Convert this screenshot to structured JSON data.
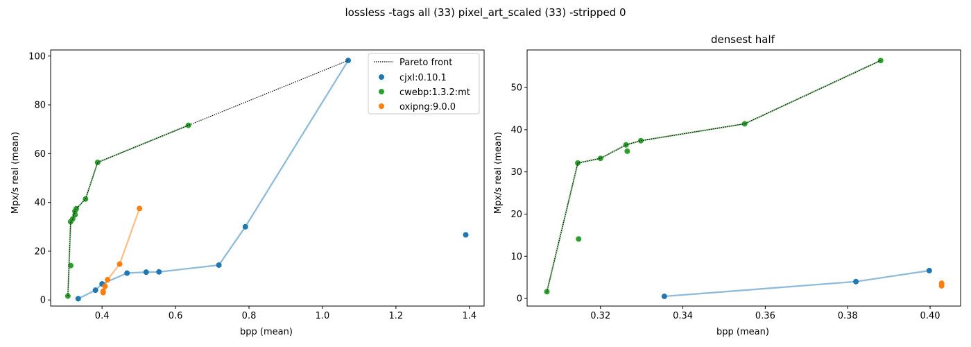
{
  "figure": {
    "suptitle": "lossless -tags all (33) pixel_art_scaled (33) -stripped 0"
  },
  "colors": {
    "cjxl": "#1f77b4",
    "cwebp": "#2ca02c",
    "oxipng": "#ff7f0e",
    "pareto": "#000000"
  },
  "chart_data": [
    {
      "type": "scatter",
      "title": "",
      "xlabel": "bpp (mean)",
      "ylabel": "Mpx/s real (mean)",
      "xlim": [
        0.26,
        1.44
      ],
      "ylim": [
        -2.5,
        102.5
      ],
      "xticks": [
        0.4,
        0.6,
        0.8,
        1.0,
        1.2,
        1.4
      ],
      "xtick_labels": [
        "0.4",
        "0.6",
        "0.8",
        "1.0",
        "1.2",
        "1.4"
      ],
      "yticks": [
        0,
        20,
        40,
        60,
        80,
        100
      ],
      "ytick_labels": [
        "0",
        "20",
        "40",
        "60",
        "80",
        "100"
      ],
      "grid": false,
      "legend_position": "top-right",
      "legend": [
        "Pareto front",
        "cjxl:0.10.1",
        "cwebp:1.3.2:mt",
        "oxipng:9.0.0"
      ],
      "series": [
        {
          "name": "cjxl:0.10.1",
          "color": "#1f77b4",
          "line": true,
          "points": [
            [
              0.335,
              0.5
            ],
            [
              0.382,
              4.0
            ],
            [
              0.4,
              6.6
            ],
            [
              0.468,
              11.0
            ],
            [
              0.52,
              11.4
            ],
            [
              0.555,
              11.5
            ],
            [
              0.718,
              14.3
            ],
            [
              0.79,
              30.0
            ],
            [
              1.07,
              98.2
            ]
          ],
          "extra_points": [
            [
              1.39,
              26.7
            ]
          ]
        },
        {
          "name": "cwebp:1.3.2:mt",
          "color": "#2ca02c",
          "line": true,
          "points": [
            [
              0.307,
              1.6
            ],
            [
              0.3145,
              32.1
            ],
            [
              0.32,
              33.2
            ],
            [
              0.3262,
              36.4
            ],
            [
              0.3298,
              37.4
            ],
            [
              0.355,
              41.4
            ],
            [
              0.388,
              56.4
            ],
            [
              0.635,
              71.6
            ]
          ],
          "extra_points": [
            [
              0.3147,
              14.1
            ],
            [
              0.3265,
              34.9
            ]
          ]
        },
        {
          "name": "oxipng:9.0.0",
          "color": "#ff7f0e",
          "line": true,
          "points": [
            [
              0.403,
              3.0
            ],
            [
              0.403,
              3.6
            ],
            [
              0.408,
              5.6
            ],
            [
              0.415,
              8.3
            ],
            [
              0.448,
              14.7
            ],
            [
              0.502,
              37.5
            ]
          ],
          "extra_points": []
        }
      ],
      "pareto_front": [
        [
          0.307,
          1.6
        ],
        [
          0.3145,
          32.1
        ],
        [
          0.32,
          33.2
        ],
        [
          0.3262,
          36.4
        ],
        [
          0.3298,
          37.4
        ],
        [
          0.355,
          41.4
        ],
        [
          0.388,
          56.4
        ],
        [
          0.635,
          71.6
        ],
        [
          1.07,
          98.2
        ]
      ]
    },
    {
      "type": "scatter",
      "title": "densest half",
      "xlabel": "bpp (mean)",
      "ylabel": "Mpx/s real (mean)",
      "xlim": [
        0.3022,
        0.4074
      ],
      "ylim": [
        -1.8,
        58.9
      ],
      "xticks": [
        0.32,
        0.34,
        0.36,
        0.38,
        0.4
      ],
      "xtick_labels": [
        "0.32",
        "0.34",
        "0.36",
        "0.38",
        "0.40"
      ],
      "yticks": [
        0,
        10,
        20,
        30,
        40,
        50
      ],
      "ytick_labels": [
        "0",
        "10",
        "20",
        "30",
        "40",
        "50"
      ],
      "grid": false,
      "legend_position": "none",
      "series": [
        {
          "name": "cjxl:0.10.1",
          "color": "#1f77b4",
          "line": true,
          "points": [
            [
              0.3355,
              0.5
            ],
            [
              0.382,
              4.0
            ],
            [
              0.3998,
              6.6
            ]
          ],
          "extra_points": []
        },
        {
          "name": "cwebp:1.3.2:mt",
          "color": "#2ca02c",
          "line": true,
          "points": [
            [
              0.307,
              1.6
            ],
            [
              0.3145,
              32.1
            ],
            [
              0.32,
              33.2
            ],
            [
              0.3262,
              36.4
            ],
            [
              0.3298,
              37.4
            ],
            [
              0.355,
              41.4
            ],
            [
              0.388,
              56.4
            ]
          ],
          "extra_points": [
            [
              0.3147,
              14.1
            ],
            [
              0.3265,
              34.9
            ]
          ]
        },
        {
          "name": "oxipng:9.0.0",
          "color": "#ff7f0e",
          "line": false,
          "points": [
            [
              0.4028,
              3.0
            ],
            [
              0.4028,
              3.6
            ]
          ],
          "extra_points": []
        }
      ],
      "pareto_front": [
        [
          0.307,
          1.6
        ],
        [
          0.3145,
          32.1
        ],
        [
          0.32,
          33.2
        ],
        [
          0.3262,
          36.4
        ],
        [
          0.3298,
          37.4
        ],
        [
          0.355,
          41.4
        ],
        [
          0.388,
          56.4
        ]
      ]
    }
  ]
}
